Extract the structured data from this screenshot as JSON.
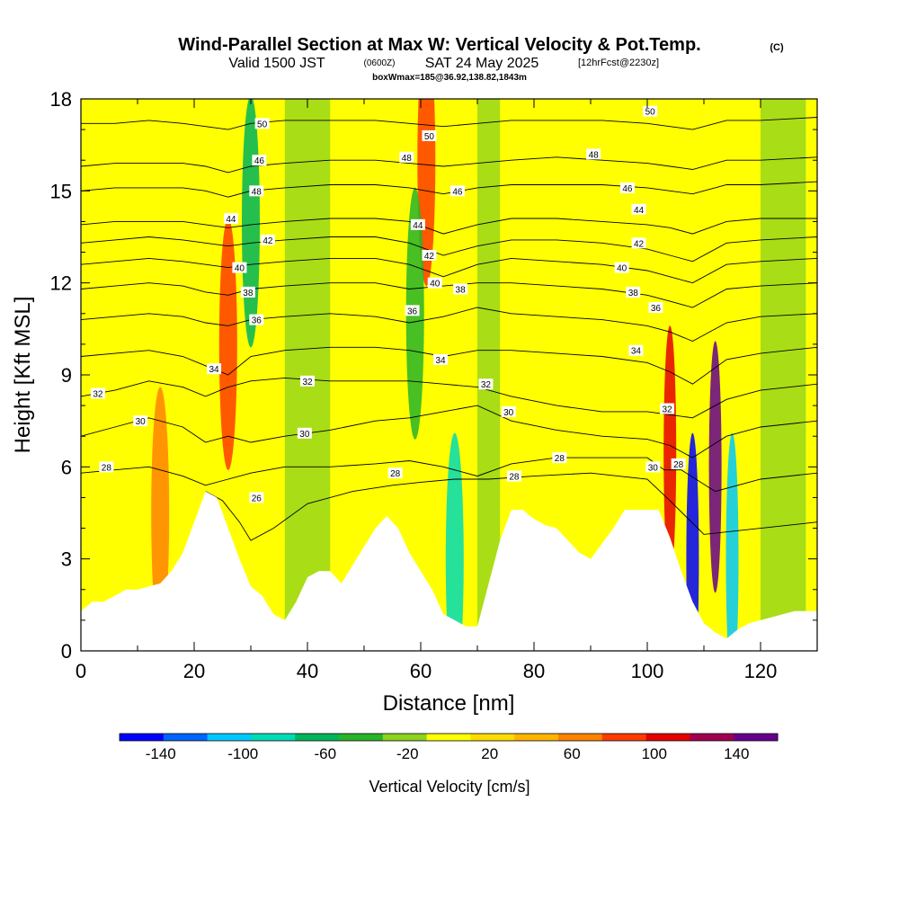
{
  "header": {
    "title": "Wind-Parallel Section at Max W: Vertical Velocity & Pot.Temp.",
    "copyright": "(C)",
    "valid_main": "Valid 1500 JST",
    "valid_utc": "(0600Z)",
    "valid_date": "SAT 24 May 2025",
    "forecast": "[12hrFcst@2230z]",
    "box_info": "boxWmax=185@36.92,138.82,1843m"
  },
  "chart_data": {
    "type": "heatmap",
    "xlabel": "Distance [nm]",
    "ylabel": "Height [Kft MSL]",
    "xlim": [
      0,
      130
    ],
    "ylim": [
      0,
      18
    ],
    "x_ticks": [
      "0",
      "20",
      "40",
      "60",
      "80",
      "100",
      "120"
    ],
    "y_ticks": [
      "0",
      "3",
      "6",
      "9",
      "12",
      "15",
      "18"
    ],
    "colorbar": {
      "label": "Vertical Velocity [cm/s]",
      "min": -160,
      "max": 160,
      "tick_labels": [
        "-140",
        "-100",
        "-60",
        "-20",
        "20",
        "60",
        "100",
        "140"
      ],
      "tick_values": [
        -140,
        -100,
        -60,
        -20,
        20,
        60,
        100,
        140
      ],
      "colors": [
        "#0000ff",
        "#0064ff",
        "#00c8ff",
        "#00dcb4",
        "#00b45a",
        "#28b428",
        "#8cd21e",
        "#ffff00",
        "#ffdc00",
        "#ffb400",
        "#ff8200",
        "#ff3c00",
        "#e60000",
        "#a00050",
        "#64008c"
      ]
    },
    "terrain": {
      "x": [
        0,
        2,
        4,
        6,
        8,
        10,
        12,
        14,
        16,
        18,
        20,
        22,
        24,
        26,
        28,
        30,
        32,
        34,
        36,
        38,
        40,
        42,
        44,
        46,
        48,
        50,
        52,
        54,
        56,
        58,
        60,
        62,
        64,
        66,
        68,
        70,
        72,
        74,
        76,
        78,
        80,
        82,
        84,
        86,
        88,
        90,
        92,
        94,
        96,
        98,
        100,
        102,
        104,
        106,
        108,
        110,
        112,
        114,
        116,
        118,
        120,
        122,
        124,
        126,
        128,
        130
      ],
      "height_kft": [
        1.3,
        1.6,
        1.6,
        1.8,
        2.0,
        2.0,
        2.1,
        2.2,
        2.6,
        3.2,
        4.2,
        5.2,
        5.0,
        4.0,
        3.0,
        2.1,
        1.8,
        1.2,
        1.0,
        1.6,
        2.4,
        2.6,
        2.6,
        2.2,
        2.8,
        3.4,
        4.0,
        4.4,
        4.0,
        3.2,
        2.6,
        2.0,
        1.2,
        1.0,
        0.8,
        0.8,
        2.2,
        3.6,
        4.6,
        4.6,
        4.3,
        4.1,
        4.0,
        3.6,
        3.2,
        3.0,
        3.5,
        4.0,
        4.6,
        4.6,
        4.6,
        4.6,
        3.7,
        2.6,
        1.6,
        0.9,
        0.6,
        0.4,
        0.7,
        0.9,
        1.0,
        1.1,
        1.2,
        1.3,
        1.3,
        1.3
      ]
    },
    "wvel_features": [
      {
        "x": 14,
        "z": 4.5,
        "w": 70
      },
      {
        "x": 26,
        "z": 10.0,
        "w": 80
      },
      {
        "x": 30,
        "z": 14.0,
        "w": -70
      },
      {
        "x": 61,
        "z": 16.0,
        "w": 80
      },
      {
        "x": 59,
        "z": 11.0,
        "w": -50
      },
      {
        "x": 66,
        "z": 3.0,
        "w": -90
      },
      {
        "x": 104,
        "z": 6.5,
        "w": 110
      },
      {
        "x": 108,
        "z": 3.0,
        "w": -140
      },
      {
        "x": 112,
        "z": 6.0,
        "w": 150
      },
      {
        "x": 115,
        "z": 3.0,
        "w": -110
      }
    ],
    "theta_contours": [
      {
        "label": "26",
        "x": [
          22,
          25,
          28,
          30,
          34,
          40,
          48,
          55,
          60,
          66,
          72,
          80,
          90,
          100,
          104,
          110,
          120,
          130
        ],
        "z": [
          5.2,
          4.9,
          4.2,
          3.6,
          4.0,
          4.8,
          5.2,
          5.4,
          5.5,
          5.6,
          5.6,
          5.7,
          5.8,
          5.6,
          4.9,
          3.8,
          4.0,
          4.2
        ]
      },
      {
        "label": "28",
        "x": [
          0,
          6,
          12,
          18,
          22,
          26,
          30,
          36,
          44,
          52,
          58,
          64,
          70,
          76,
          84,
          92,
          100,
          103,
          106,
          112,
          120,
          130
        ],
        "z": [
          5.8,
          5.9,
          6.0,
          5.7,
          5.4,
          5.6,
          5.8,
          6.0,
          6.0,
          6.1,
          6.2,
          6.0,
          5.7,
          6.1,
          6.3,
          6.3,
          6.3,
          5.9,
          5.9,
          5.2,
          5.6,
          5.8
        ]
      },
      {
        "label": "30",
        "x": [
          0,
          6,
          12,
          18,
          22,
          26,
          30,
          36,
          44,
          52,
          58,
          64,
          70,
          76,
          84,
          92,
          100,
          104,
          108,
          114,
          120,
          130
        ],
        "z": [
          7.0,
          7.3,
          7.6,
          7.3,
          6.8,
          7.0,
          6.8,
          7.0,
          7.2,
          7.5,
          7.6,
          7.8,
          8.0,
          7.5,
          7.2,
          7.0,
          6.9,
          6.7,
          6.3,
          7.0,
          7.3,
          7.5
        ]
      },
      {
        "label": "32",
        "x": [
          0,
          6,
          12,
          18,
          22,
          26,
          30,
          36,
          44,
          52,
          58,
          64,
          70,
          76,
          84,
          92,
          100,
          104,
          108,
          114,
          120,
          130
        ],
        "z": [
          8.3,
          8.5,
          8.8,
          8.6,
          8.3,
          8.6,
          8.8,
          8.9,
          8.8,
          8.8,
          8.8,
          8.7,
          8.6,
          8.3,
          8.0,
          7.8,
          7.8,
          7.7,
          7.6,
          8.2,
          8.5,
          8.7
        ]
      },
      {
        "label": "34",
        "x": [
          0,
          6,
          12,
          18,
          22,
          26,
          30,
          36,
          44,
          52,
          58,
          64,
          70,
          76,
          84,
          92,
          100,
          104,
          108,
          114,
          120,
          130
        ],
        "z": [
          9.6,
          9.7,
          9.8,
          9.6,
          9.3,
          9.0,
          9.6,
          9.8,
          9.9,
          9.9,
          9.8,
          9.6,
          9.8,
          9.8,
          9.7,
          9.6,
          9.4,
          9.1,
          8.7,
          9.5,
          9.7,
          9.9
        ]
      },
      {
        "label": "36",
        "x": [
          0,
          6,
          12,
          18,
          22,
          26,
          30,
          36,
          44,
          52,
          58,
          64,
          70,
          76,
          84,
          92,
          100,
          104,
          108,
          114,
          120,
          130
        ],
        "z": [
          10.8,
          10.9,
          11.0,
          10.9,
          10.7,
          10.6,
          10.8,
          10.9,
          11.0,
          10.9,
          10.7,
          10.9,
          11.2,
          11.0,
          10.9,
          10.8,
          10.6,
          10.4,
          10.1,
          10.7,
          10.9,
          11.0
        ]
      },
      {
        "label": "38",
        "x": [
          0,
          6,
          12,
          18,
          22,
          26,
          30,
          36,
          44,
          52,
          58,
          64,
          70,
          76,
          84,
          92,
          100,
          104,
          108,
          114,
          120,
          130
        ],
        "z": [
          11.8,
          11.9,
          12.0,
          11.9,
          11.7,
          11.6,
          11.8,
          11.9,
          12.0,
          12.0,
          11.8,
          11.9,
          12.0,
          12.0,
          11.9,
          11.8,
          11.6,
          11.4,
          11.2,
          11.8,
          11.9,
          12.0
        ]
      },
      {
        "label": "40",
        "x": [
          0,
          6,
          12,
          18,
          22,
          26,
          30,
          36,
          44,
          52,
          58,
          64,
          70,
          76,
          84,
          92,
          100,
          104,
          108,
          114,
          120,
          130
        ],
        "z": [
          12.6,
          12.7,
          12.8,
          12.7,
          12.6,
          12.5,
          12.6,
          12.7,
          12.8,
          12.8,
          12.6,
          12.2,
          12.6,
          12.8,
          12.7,
          12.6,
          12.4,
          12.2,
          12.0,
          12.6,
          12.7,
          12.8
        ]
      },
      {
        "label": "42",
        "x": [
          0,
          6,
          12,
          18,
          22,
          26,
          30,
          36,
          44,
          52,
          58,
          64,
          70,
          76,
          84,
          92,
          100,
          104,
          108,
          114,
          120,
          130
        ],
        "z": [
          13.3,
          13.4,
          13.5,
          13.4,
          13.3,
          13.2,
          13.3,
          13.4,
          13.5,
          13.5,
          13.3,
          12.9,
          13.2,
          13.4,
          13.4,
          13.3,
          13.1,
          12.9,
          12.7,
          13.3,
          13.4,
          13.5
        ]
      },
      {
        "label": "44",
        "x": [
          0,
          6,
          12,
          18,
          22,
          26,
          30,
          36,
          44,
          52,
          58,
          64,
          70,
          76,
          84,
          92,
          100,
          104,
          108,
          114,
          120,
          130
        ],
        "z": [
          13.9,
          14.0,
          14.0,
          14.0,
          13.9,
          13.8,
          13.9,
          14.0,
          14.1,
          14.1,
          14.0,
          13.6,
          13.9,
          14.1,
          14.1,
          14.0,
          13.9,
          13.8,
          13.6,
          14.0,
          14.1,
          14.1
        ]
      },
      {
        "label": "46",
        "x": [
          0,
          6,
          12,
          18,
          22,
          26,
          30,
          36,
          44,
          52,
          58,
          64,
          70,
          76,
          84,
          92,
          100,
          104,
          108,
          114,
          120,
          130
        ],
        "z": [
          15.0,
          15.1,
          15.1,
          15.1,
          15.0,
          14.8,
          15.0,
          15.1,
          15.2,
          15.2,
          15.1,
          14.9,
          15.1,
          15.2,
          15.2,
          15.2,
          15.1,
          15.0,
          14.9,
          15.2,
          15.2,
          15.3
        ]
      },
      {
        "label": "48",
        "x": [
          0,
          6,
          12,
          18,
          22,
          26,
          30,
          36,
          44,
          52,
          58,
          64,
          70,
          76,
          84,
          92,
          100,
          104,
          108,
          114,
          120,
          130
        ],
        "z": [
          15.8,
          15.9,
          15.9,
          15.9,
          15.8,
          15.6,
          15.8,
          15.9,
          16.0,
          16.0,
          15.9,
          15.8,
          15.9,
          16.0,
          16.1,
          16.0,
          15.9,
          15.8,
          15.7,
          16.0,
          16.0,
          16.1
        ]
      },
      {
        "label": "50",
        "x": [
          0,
          6,
          12,
          18,
          22,
          26,
          30,
          36,
          44,
          52,
          58,
          64,
          70,
          76,
          84,
          92,
          100,
          104,
          108,
          114,
          120,
          130
        ],
        "z": [
          17.2,
          17.2,
          17.3,
          17.2,
          17.1,
          17.0,
          17.2,
          17.3,
          17.3,
          17.3,
          17.2,
          17.1,
          17.2,
          17.3,
          17.3,
          17.3,
          17.2,
          17.1,
          17.0,
          17.3,
          17.3,
          17.4
        ]
      }
    ],
    "theta_labels": [
      {
        "text": "26",
        "x": 31.0,
        "z": 5.0
      },
      {
        "text": "28",
        "x": 4.5,
        "z": 6.0
      },
      {
        "text": "28",
        "x": 55.5,
        "z": 5.8
      },
      {
        "text": "28",
        "x": 76.5,
        "z": 5.7
      },
      {
        "text": "28",
        "x": 84.5,
        "z": 6.3
      },
      {
        "text": "28",
        "x": 105.5,
        "z": 6.1
      },
      {
        "text": "30",
        "x": 10.5,
        "z": 7.5
      },
      {
        "text": "30",
        "x": 39.5,
        "z": 7.1
      },
      {
        "text": "30",
        "x": 75.5,
        "z": 7.8
      },
      {
        "text": "30",
        "x": 101.0,
        "z": 6.0
      },
      {
        "text": "32",
        "x": 3.0,
        "z": 8.4
      },
      {
        "text": "32",
        "x": 40.0,
        "z": 8.8
      },
      {
        "text": "32",
        "x": 71.5,
        "z": 8.7
      },
      {
        "text": "32",
        "x": 103.5,
        "z": 7.9
      },
      {
        "text": "34",
        "x": 23.5,
        "z": 9.2
      },
      {
        "text": "34",
        "x": 63.5,
        "z": 9.5
      },
      {
        "text": "34",
        "x": 98.0,
        "z": 9.8
      },
      {
        "text": "36",
        "x": 31.0,
        "z": 10.8
      },
      {
        "text": "36",
        "x": 58.5,
        "z": 11.1
      },
      {
        "text": "36",
        "x": 101.5,
        "z": 11.2
      },
      {
        "text": "38",
        "x": 29.5,
        "z": 11.7
      },
      {
        "text": "38",
        "x": 67.0,
        "z": 11.8
      },
      {
        "text": "38",
        "x": 97.5,
        "z": 11.7
      },
      {
        "text": "40",
        "x": 28.0,
        "z": 12.5
      },
      {
        "text": "40",
        "x": 62.5,
        "z": 12.0
      },
      {
        "text": "40",
        "x": 95.5,
        "z": 12.5
      },
      {
        "text": "42",
        "x": 33.0,
        "z": 13.4
      },
      {
        "text": "42",
        "x": 61.5,
        "z": 12.9
      },
      {
        "text": "42",
        "x": 98.5,
        "z": 13.3
      },
      {
        "text": "44",
        "x": 26.5,
        "z": 14.1
      },
      {
        "text": "44",
        "x": 59.5,
        "z": 13.9
      },
      {
        "text": "44",
        "x": 98.5,
        "z": 14.4
      },
      {
        "text": "46",
        "x": 31.5,
        "z": 16.0
      },
      {
        "text": "46",
        "x": 66.5,
        "z": 15.0
      },
      {
        "text": "46",
        "x": 96.5,
        "z": 15.1
      },
      {
        "text": "48",
        "x": 31.0,
        "z": 15.0
      },
      {
        "text": "48",
        "x": 57.5,
        "z": 16.1
      },
      {
        "text": "48",
        "x": 90.5,
        "z": 16.2
      },
      {
        "text": "50",
        "x": 32.0,
        "z": 17.2
      },
      {
        "text": "50",
        "x": 61.5,
        "z": 16.8
      },
      {
        "text": "50",
        "x": 100.5,
        "z": 17.6
      }
    ]
  }
}
